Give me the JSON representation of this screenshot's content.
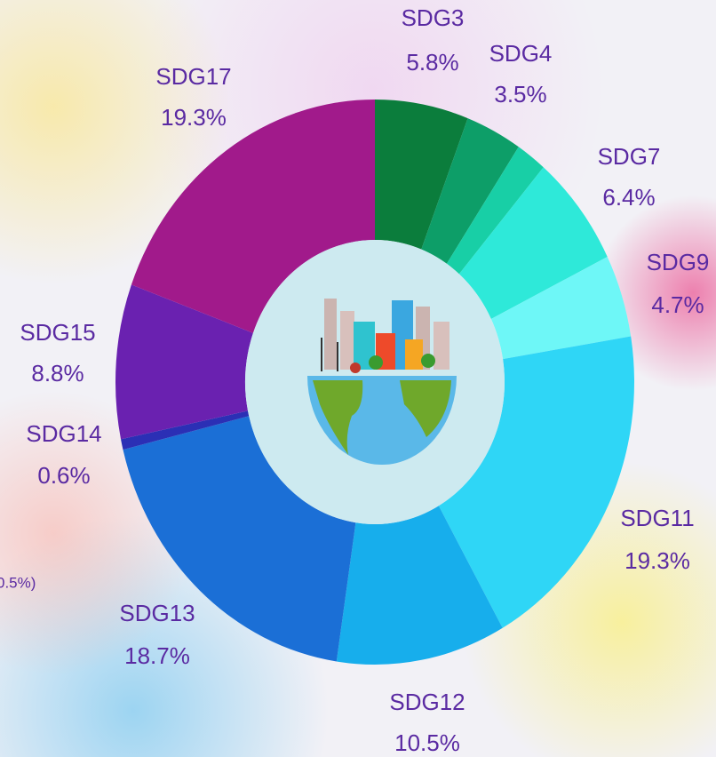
{
  "chart_data": {
    "type": "donut",
    "categories": [
      "SDG3",
      "SDG4",
      null,
      "SDG7",
      "SDG9",
      "SDG11",
      "SDG12",
      "SDG13",
      "SDG14",
      "SDG15",
      "SDG17"
    ],
    "values": [
      5.8,
      3.5,
      1.9,
      6.4,
      4.7,
      19.3,
      10.5,
      18.7,
      0.6,
      8.8,
      19.3
    ],
    "value_labels": [
      "5.8%",
      "3.5%",
      null,
      "6.4%",
      "4.7%",
      "19.3%",
      "10.5%",
      "18.7%",
      "0.6%",
      "8.8%",
      "19.3%"
    ],
    "colors": [
      "#0b7d3c",
      "#0d9e68",
      "#18cfa6",
      "#2ee9d9",
      "#6ef7f7",
      "#2fd6f6",
      "#17aeec",
      "#1b6fd6",
      "#2b2fb5",
      "#6a21b0",
      "#a11a8b"
    ],
    "annotation": "0.5%)"
  }
}
